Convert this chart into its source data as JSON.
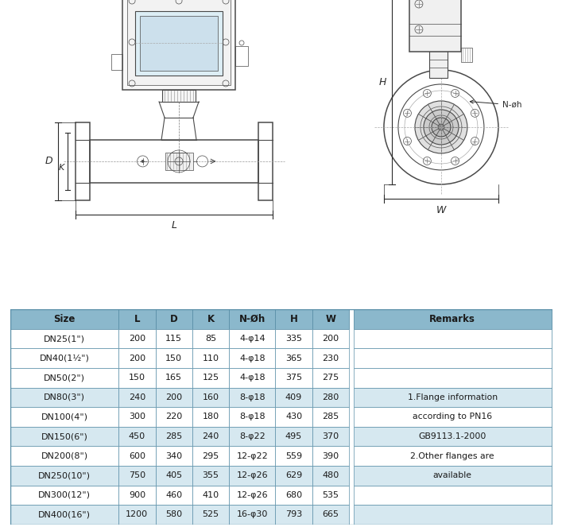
{
  "table_headers": [
    "Size",
    "L",
    "D",
    "K",
    "N-Øh",
    "H",
    "W",
    "Remarks"
  ],
  "table_rows": [
    [
      "DN25(1\")",
      "200",
      "115",
      "85",
      "4-φ14",
      "335",
      "200"
    ],
    [
      "DN40(1½\")",
      "200",
      "150",
      "110",
      "4-φ18",
      "365",
      "230"
    ],
    [
      "DN50(2\")",
      "150",
      "165",
      "125",
      "4-φ18",
      "375",
      "275"
    ],
    [
      "DN80(3\")",
      "240",
      "200",
      "160",
      "8-φ18",
      "409",
      "280"
    ],
    [
      "DN100(4\")",
      "300",
      "220",
      "180",
      "8-φ18",
      "430",
      "285"
    ],
    [
      "DN150(6\")",
      "450",
      "285",
      "240",
      "8-φ22",
      "495",
      "370"
    ],
    [
      "DN200(8\")",
      "600",
      "340",
      "295",
      "12-φ22",
      "559",
      "390"
    ],
    [
      "DN250(10\")",
      "750",
      "405",
      "355",
      "12-φ26",
      "629",
      "480"
    ],
    [
      "DN300(12\")",
      "900",
      "460",
      "410",
      "12-φ26",
      "680",
      "535"
    ],
    [
      "DN400(16\")",
      "1200",
      "580",
      "525",
      "16-φ30",
      "793",
      "665"
    ]
  ],
  "remarks_lines": [
    [
      "1.Flange information",
      3
    ],
    [
      "according to PN16",
      4
    ],
    [
      "GB9113.1-2000",
      5
    ],
    [
      "",
      5
    ],
    [
      "2.Other flanges are",
      6
    ],
    [
      "available",
      7
    ]
  ],
  "header_bg": "#8bb8cc",
  "row_bg_white": "#ffffff",
  "row_bg_blue": "#d6e8f0",
  "border_color": "#5a8fa8",
  "text_color": "#1a1a1a",
  "bg_color": "#ffffff",
  "dc": "#4a4a4a",
  "dim_c": "#2a2a2a"
}
